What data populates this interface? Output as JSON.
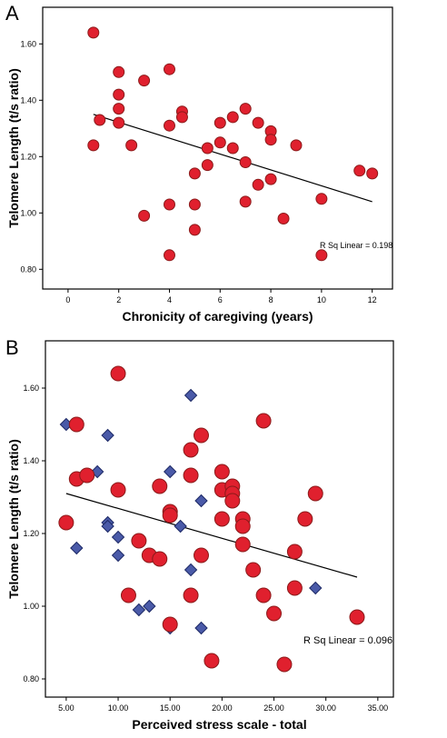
{
  "chart_data": [
    {
      "panel": "A",
      "type": "scatter",
      "xlabel": "Chronicity of caregiving (years)",
      "ylabel": "Telomere Length (t/s ratio)",
      "xlim": [
        -1,
        12.8
      ],
      "ylim": [
        0.73,
        1.73
      ],
      "x_ticks": [
        0,
        2,
        4,
        6,
        8,
        10,
        12
      ],
      "x_tick_labels": [
        "0",
        "2",
        "4",
        "6",
        "8",
        "10",
        "12"
      ],
      "y_ticks": [
        0.8,
        1.0,
        1.2,
        1.4,
        1.6
      ],
      "y_tick_labels": [
        "0.80",
        "1.00",
        "1.20",
        "1.40",
        "1.60"
      ],
      "annotation": "R Sq Linear = 0.198",
      "colors": {
        "point": "#e0202e",
        "point_edge": "#8b1a1a"
      },
      "points": [
        {
          "x": 1.0,
          "y": 1.64
        },
        {
          "x": 1.0,
          "y": 1.24
        },
        {
          "x": 1.25,
          "y": 1.33
        },
        {
          "x": 2.0,
          "y": 1.5
        },
        {
          "x": 2.0,
          "y": 1.42
        },
        {
          "x": 2.0,
          "y": 1.37
        },
        {
          "x": 2.0,
          "y": 1.32
        },
        {
          "x": 2.5,
          "y": 1.24
        },
        {
          "x": 3.0,
          "y": 1.47
        },
        {
          "x": 3.0,
          "y": 0.99
        },
        {
          "x": 4.0,
          "y": 1.51
        },
        {
          "x": 4.0,
          "y": 1.31
        },
        {
          "x": 4.0,
          "y": 1.03
        },
        {
          "x": 4.0,
          "y": 0.85
        },
        {
          "x": 4.5,
          "y": 1.36
        },
        {
          "x": 4.5,
          "y": 1.34
        },
        {
          "x": 5.0,
          "y": 1.14
        },
        {
          "x": 5.0,
          "y": 1.03
        },
        {
          "x": 5.0,
          "y": 0.94
        },
        {
          "x": 5.5,
          "y": 1.23
        },
        {
          "x": 5.5,
          "y": 1.17
        },
        {
          "x": 6.0,
          "y": 1.32
        },
        {
          "x": 6.0,
          "y": 1.25
        },
        {
          "x": 6.5,
          "y": 1.34
        },
        {
          "x": 6.5,
          "y": 1.23
        },
        {
          "x": 7.0,
          "y": 1.37
        },
        {
          "x": 7.0,
          "y": 1.18
        },
        {
          "x": 7.0,
          "y": 1.04
        },
        {
          "x": 7.5,
          "y": 1.32
        },
        {
          "x": 7.5,
          "y": 1.1
        },
        {
          "x": 8.0,
          "y": 1.29
        },
        {
          "x": 8.0,
          "y": 1.26
        },
        {
          "x": 8.0,
          "y": 1.12
        },
        {
          "x": 8.5,
          "y": 0.98
        },
        {
          "x": 9.0,
          "y": 1.24
        },
        {
          "x": 10.0,
          "y": 1.05
        },
        {
          "x": 10.0,
          "y": 0.85
        },
        {
          "x": 11.5,
          "y": 1.15
        },
        {
          "x": 12.0,
          "y": 1.14
        }
      ],
      "fit_line": {
        "x": [
          1.0,
          12.0
        ],
        "y": [
          1.35,
          1.04
        ]
      }
    },
    {
      "panel": "B",
      "type": "scatter",
      "xlabel": "Perceived stress scale - total",
      "ylabel": "Telomere Length (t/s ratio)",
      "xlim": [
        3.0,
        36.5
      ],
      "ylim": [
        0.75,
        1.73
      ],
      "x_ticks": [
        5,
        10,
        15,
        20,
        25,
        30,
        35
      ],
      "x_tick_labels": [
        "5.00",
        "10.00",
        "15.00",
        "20.00",
        "25.00",
        "30.00",
        "35.00"
      ],
      "y_ticks": [
        0.8,
        1.0,
        1.2,
        1.4,
        1.6
      ],
      "y_tick_labels": [
        "0.80",
        "1.00",
        "1.20",
        "1.40",
        "1.60"
      ],
      "annotation": "R Sq Linear = 0.096",
      "colors": {
        "circle": "#e0202e",
        "circle_edge": "#8b1a1a",
        "diamond": "#4a5aa8",
        "diamond_edge": "#1e2a66"
      },
      "circles": [
        {
          "x": 5.0,
          "y": 1.23
        },
        {
          "x": 6.0,
          "y": 1.5
        },
        {
          "x": 6.0,
          "y": 1.35
        },
        {
          "x": 7.0,
          "y": 1.36
        },
        {
          "x": 10.0,
          "y": 1.64
        },
        {
          "x": 10.0,
          "y": 1.32
        },
        {
          "x": 11.0,
          "y": 1.03
        },
        {
          "x": 12.0,
          "y": 1.18
        },
        {
          "x": 13.0,
          "y": 1.14
        },
        {
          "x": 14.0,
          "y": 1.33
        },
        {
          "x": 14.0,
          "y": 1.13
        },
        {
          "x": 15.0,
          "y": 1.26
        },
        {
          "x": 15.0,
          "y": 1.25
        },
        {
          "x": 15.0,
          "y": 0.95
        },
        {
          "x": 17.0,
          "y": 1.43
        },
        {
          "x": 17.0,
          "y": 1.36
        },
        {
          "x": 17.0,
          "y": 1.03
        },
        {
          "x": 18.0,
          "y": 1.47
        },
        {
          "x": 18.0,
          "y": 1.14
        },
        {
          "x": 19.0,
          "y": 0.85
        },
        {
          "x": 20.0,
          "y": 1.37
        },
        {
          "x": 20.0,
          "y": 1.32
        },
        {
          "x": 20.0,
          "y": 1.24
        },
        {
          "x": 21.0,
          "y": 1.33
        },
        {
          "x": 21.0,
          "y": 1.31
        },
        {
          "x": 21.0,
          "y": 1.29
        },
        {
          "x": 22.0,
          "y": 1.24
        },
        {
          "x": 22.0,
          "y": 1.22
        },
        {
          "x": 22.0,
          "y": 1.17
        },
        {
          "x": 23.0,
          "y": 1.1
        },
        {
          "x": 24.0,
          "y": 1.51
        },
        {
          "x": 24.0,
          "y": 1.03
        },
        {
          "x": 25.0,
          "y": 0.98
        },
        {
          "x": 26.0,
          "y": 0.84
        },
        {
          "x": 27.0,
          "y": 1.15
        },
        {
          "x": 27.0,
          "y": 1.05
        },
        {
          "x": 28.0,
          "y": 1.24
        },
        {
          "x": 29.0,
          "y": 1.31
        },
        {
          "x": 33.0,
          "y": 0.97
        }
      ],
      "diamonds": [
        {
          "x": 5.0,
          "y": 1.5
        },
        {
          "x": 6.0,
          "y": 1.16
        },
        {
          "x": 8.0,
          "y": 1.37
        },
        {
          "x": 9.0,
          "y": 1.47
        },
        {
          "x": 9.0,
          "y": 1.23
        },
        {
          "x": 9.0,
          "y": 1.22
        },
        {
          "x": 10.0,
          "y": 1.19
        },
        {
          "x": 10.0,
          "y": 1.14
        },
        {
          "x": 12.0,
          "y": 0.99
        },
        {
          "x": 13.0,
          "y": 1.0
        },
        {
          "x": 15.0,
          "y": 1.37
        },
        {
          "x": 15.0,
          "y": 0.94
        },
        {
          "x": 16.0,
          "y": 1.22
        },
        {
          "x": 17.0,
          "y": 1.58
        },
        {
          "x": 17.0,
          "y": 1.1
        },
        {
          "x": 18.0,
          "y": 1.29
        },
        {
          "x": 18.0,
          "y": 0.94
        },
        {
          "x": 29.0,
          "y": 1.05
        }
      ],
      "fit_line": {
        "x": [
          5.0,
          33.0
        ],
        "y": [
          1.31,
          1.08
        ]
      }
    }
  ],
  "panels": {
    "a_label": "A",
    "b_label": "B"
  }
}
